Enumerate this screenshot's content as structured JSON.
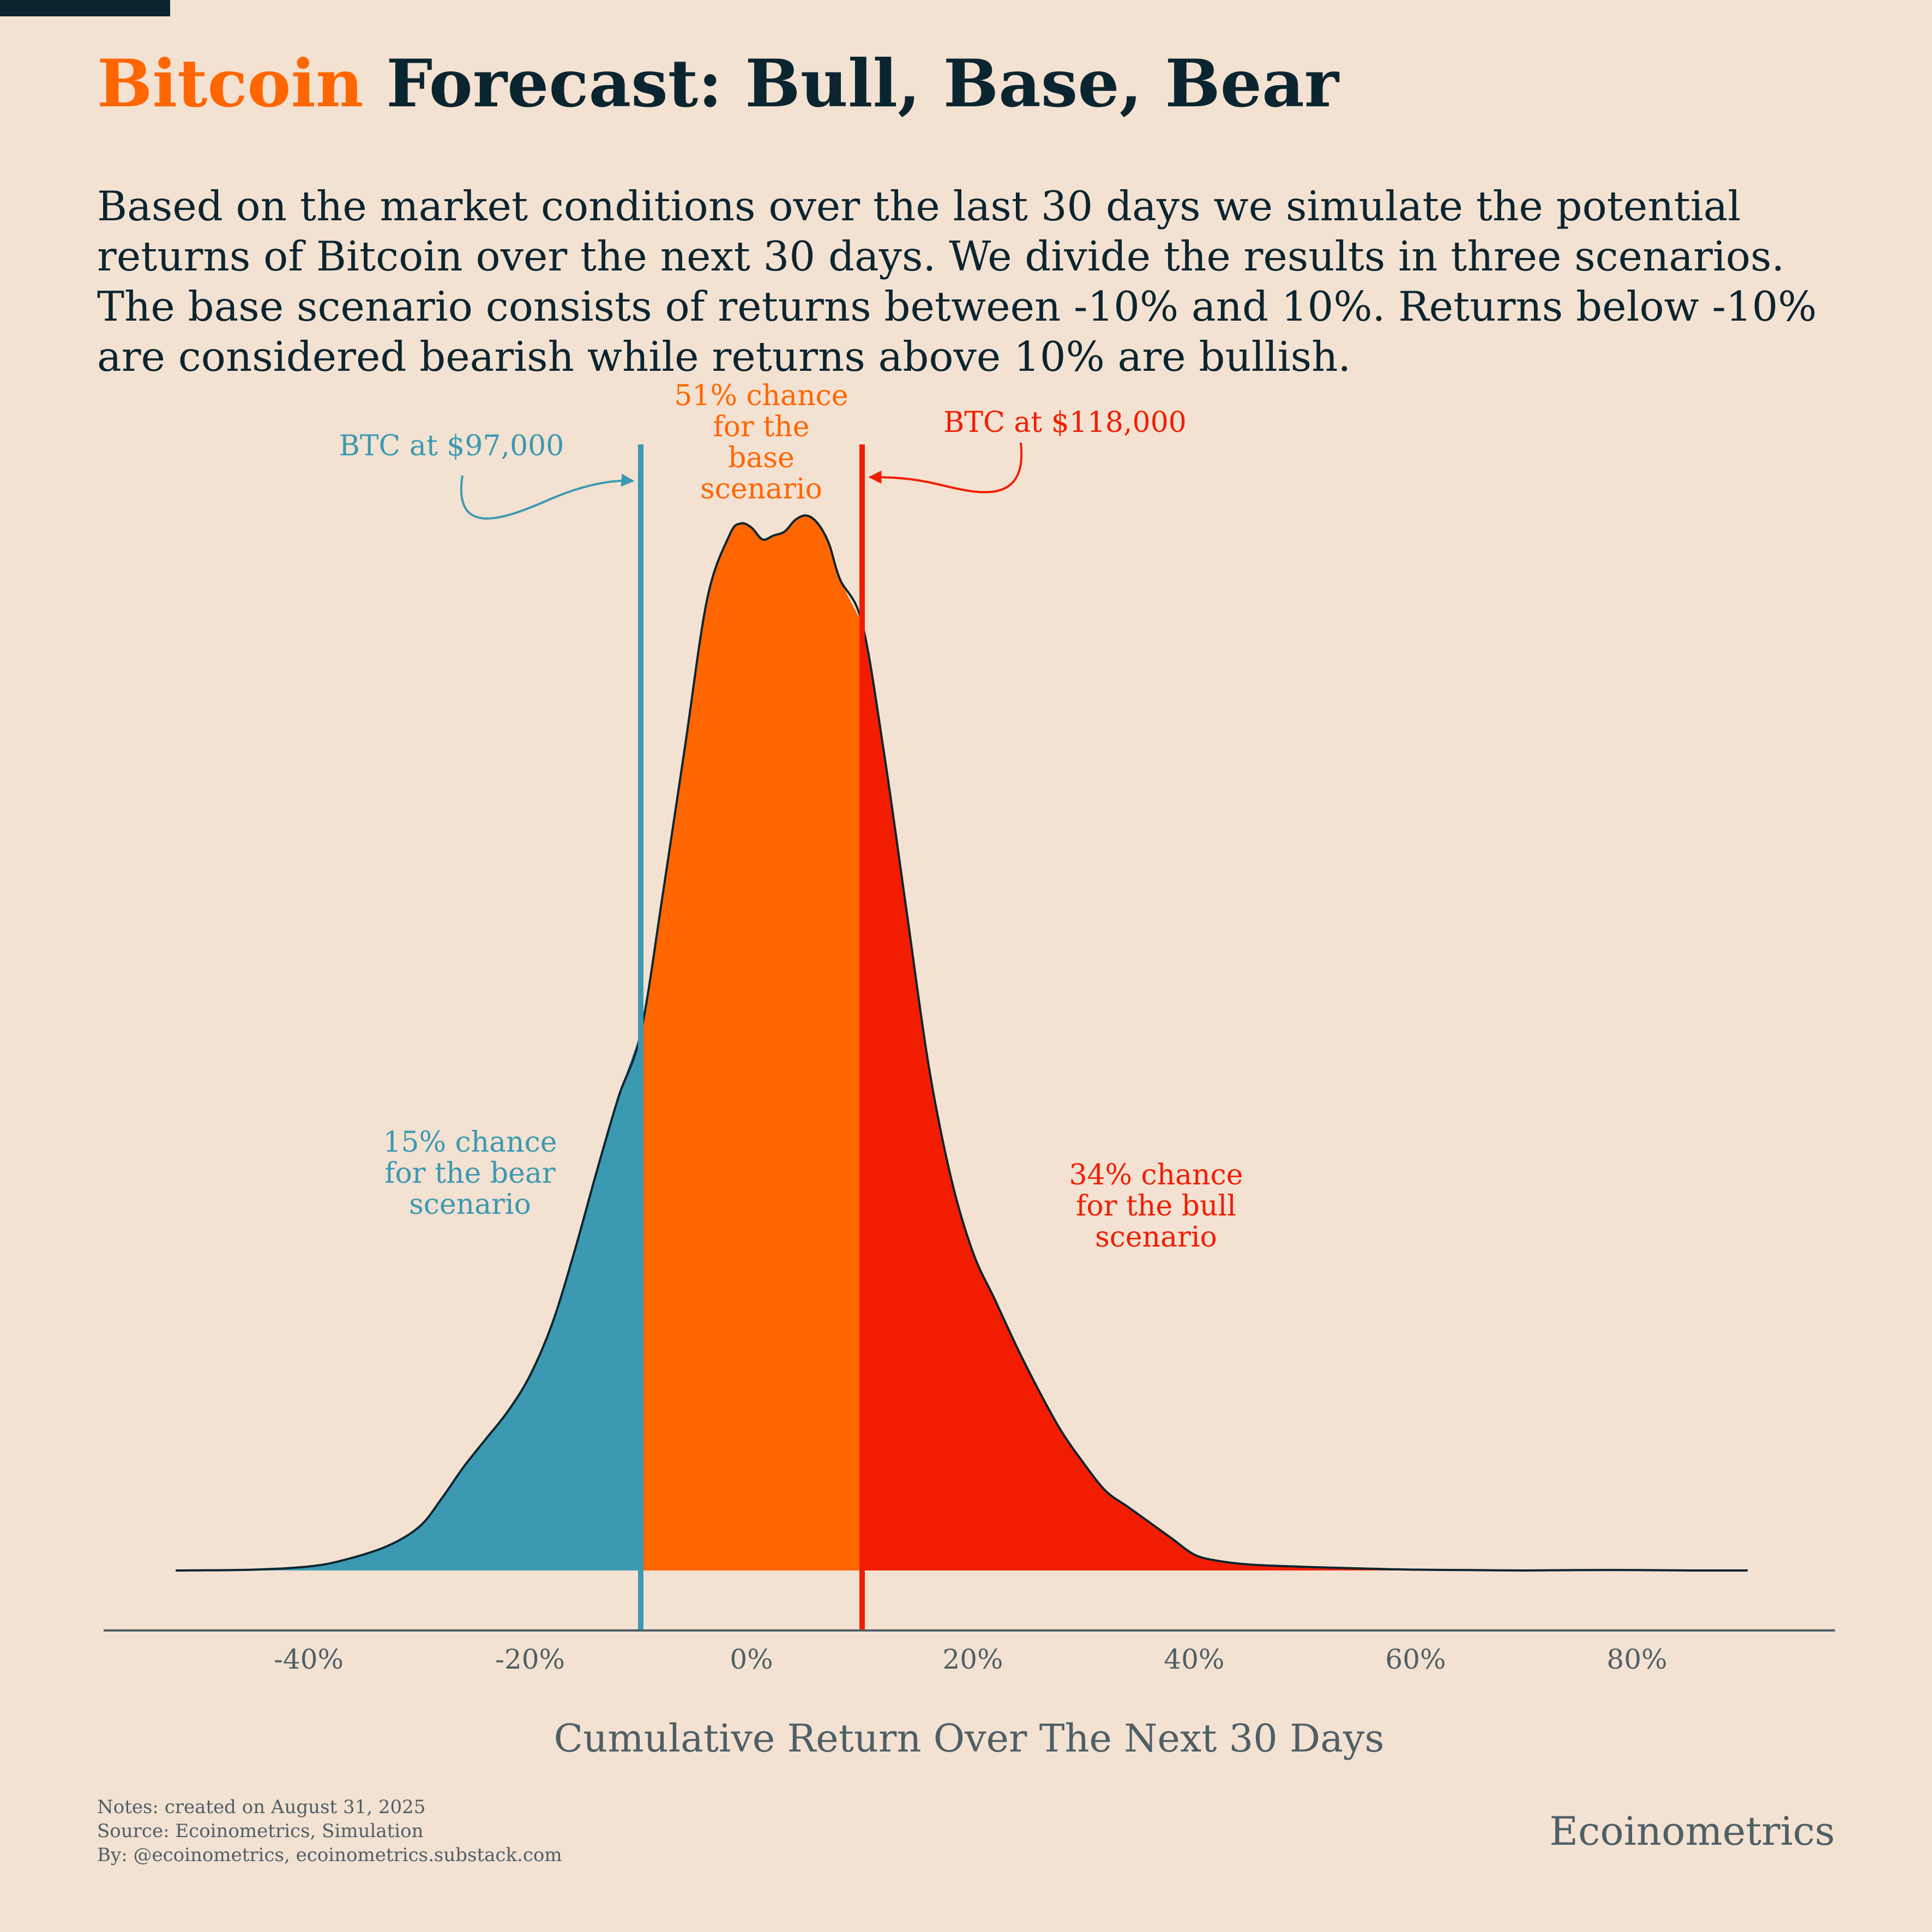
{
  "header": {
    "title_highlight": "Bitcoin",
    "title_rest": " Forecast: Bull, Base, Bear",
    "subtitle": "Based on the market conditions over the last 30 days we simulate the potential returns of Bitcoin over the next 30 days. We divide the results in three scenarios. The base scenario consists of returns between -10% and 10%. Returns below -10% are considered bearish while returns above 10% are bullish."
  },
  "colors": {
    "background": "#F3E1D1",
    "text_dark": "#0B2530",
    "highlight_orange": "#FF6600",
    "bear": "#3B99B2",
    "base": "#FF6600",
    "bull": "#F21D00",
    "axis": "#4E5F66"
  },
  "chart_data": {
    "type": "area",
    "chart_subtype": "density",
    "xlabel": "Cumulative Return Over The Next 30 Days",
    "ylabel": "",
    "x_ticks": [
      -40,
      -20,
      0,
      20,
      40,
      60,
      80
    ],
    "x_tick_labels": [
      "-40%",
      "-20%",
      "0%",
      "20%",
      "40%",
      "60%",
      "80%"
    ],
    "xlim": [
      -57,
      97
    ],
    "y_axis_visible": false,
    "grid": false,
    "density": {
      "x": [
        -52,
        -45,
        -40,
        -37,
        -33,
        -30,
        -28,
        -26,
        -24,
        -22,
        -20,
        -18,
        -16,
        -14,
        -12,
        -10,
        -8,
        -6,
        -4,
        -2,
        -1,
        0,
        1,
        2,
        3,
        4,
        5,
        6,
        7,
        8,
        10,
        12,
        14,
        16,
        18,
        20,
        22,
        24,
        26,
        28,
        30,
        32,
        34,
        36,
        38,
        40,
        42,
        45,
        50,
        55,
        60,
        65,
        70,
        75,
        80,
        85,
        90
      ],
      "y": [
        0.0,
        0.002,
        0.01,
        0.025,
        0.06,
        0.11,
        0.18,
        0.26,
        0.33,
        0.4,
        0.49,
        0.62,
        0.8,
        1.0,
        1.19,
        1.35,
        1.7,
        2.07,
        2.44,
        2.6,
        2.63,
        2.62,
        2.59,
        2.6,
        2.61,
        2.64,
        2.65,
        2.63,
        2.58,
        2.49,
        2.38,
        2.05,
        1.66,
        1.27,
        0.99,
        0.8,
        0.68,
        0.56,
        0.45,
        0.35,
        0.27,
        0.2,
        0.16,
        0.12,
        0.08,
        0.04,
        0.025,
        0.015,
        0.009,
        0.005,
        0.002,
        0.001,
        0.0,
        0.001,
        0.001,
        0.0,
        0.0
      ]
    },
    "thresholds": [
      -10,
      10
    ],
    "scenarios": [
      {
        "key": "bear",
        "range": [
          -52,
          -10
        ],
        "probability": 15,
        "label_lines": [
          "15% chance",
          "for the bear",
          "scenario"
        ]
      },
      {
        "key": "base",
        "range": [
          -10,
          10
        ],
        "probability": 51,
        "label_lines": [
          "51% chance",
          "for the",
          "base",
          "scenario"
        ]
      },
      {
        "key": "bull",
        "range": [
          10,
          90
        ],
        "probability": 34,
        "label_lines": [
          "34% chance",
          "for the bull",
          "scenario"
        ]
      }
    ],
    "annotations": [
      {
        "x": -10,
        "text": "BTC at $97,000",
        "color_key": "bear"
      },
      {
        "x": 10,
        "text": "BTC at $118,000",
        "color_key": "bull"
      }
    ]
  },
  "footer": {
    "notes": "Notes: created on August 31, 2025",
    "source": "Source: Ecoinometrics, Simulation",
    "by": "By: @ecoinometrics, ecoinometrics.substack.com",
    "brand": "Ecoinometrics"
  }
}
